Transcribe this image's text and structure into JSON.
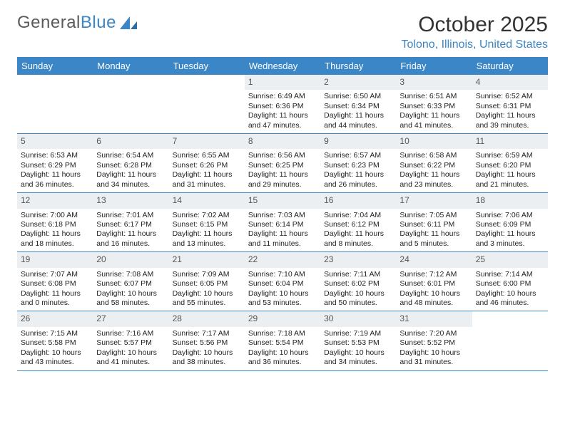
{
  "brand": {
    "part1": "General",
    "part2": "Blue"
  },
  "title": "October 2025",
  "location": "Tolono, Illinois, United States",
  "colors": {
    "accent": "#3b86c6",
    "daynum_bg": "#eceff1",
    "text": "#222222",
    "bg": "#ffffff"
  },
  "dow": [
    "Sunday",
    "Monday",
    "Tuesday",
    "Wednesday",
    "Thursday",
    "Friday",
    "Saturday"
  ],
  "layout": {
    "leading_blanks": 3,
    "days_in_month": 31
  },
  "days": [
    {
      "n": 1,
      "sunrise": "6:49 AM",
      "sunset": "6:36 PM",
      "dl_h": 11,
      "dl_m": 47
    },
    {
      "n": 2,
      "sunrise": "6:50 AM",
      "sunset": "6:34 PM",
      "dl_h": 11,
      "dl_m": 44
    },
    {
      "n": 3,
      "sunrise": "6:51 AM",
      "sunset": "6:33 PM",
      "dl_h": 11,
      "dl_m": 41
    },
    {
      "n": 4,
      "sunrise": "6:52 AM",
      "sunset": "6:31 PM",
      "dl_h": 11,
      "dl_m": 39
    },
    {
      "n": 5,
      "sunrise": "6:53 AM",
      "sunset": "6:29 PM",
      "dl_h": 11,
      "dl_m": 36
    },
    {
      "n": 6,
      "sunrise": "6:54 AM",
      "sunset": "6:28 PM",
      "dl_h": 11,
      "dl_m": 34
    },
    {
      "n": 7,
      "sunrise": "6:55 AM",
      "sunset": "6:26 PM",
      "dl_h": 11,
      "dl_m": 31
    },
    {
      "n": 8,
      "sunrise": "6:56 AM",
      "sunset": "6:25 PM",
      "dl_h": 11,
      "dl_m": 29
    },
    {
      "n": 9,
      "sunrise": "6:57 AM",
      "sunset": "6:23 PM",
      "dl_h": 11,
      "dl_m": 26
    },
    {
      "n": 10,
      "sunrise": "6:58 AM",
      "sunset": "6:22 PM",
      "dl_h": 11,
      "dl_m": 23
    },
    {
      "n": 11,
      "sunrise": "6:59 AM",
      "sunset": "6:20 PM",
      "dl_h": 11,
      "dl_m": 21
    },
    {
      "n": 12,
      "sunrise": "7:00 AM",
      "sunset": "6:18 PM",
      "dl_h": 11,
      "dl_m": 18
    },
    {
      "n": 13,
      "sunrise": "7:01 AM",
      "sunset": "6:17 PM",
      "dl_h": 11,
      "dl_m": 16
    },
    {
      "n": 14,
      "sunrise": "7:02 AM",
      "sunset": "6:15 PM",
      "dl_h": 11,
      "dl_m": 13
    },
    {
      "n": 15,
      "sunrise": "7:03 AM",
      "sunset": "6:14 PM",
      "dl_h": 11,
      "dl_m": 11
    },
    {
      "n": 16,
      "sunrise": "7:04 AM",
      "sunset": "6:12 PM",
      "dl_h": 11,
      "dl_m": 8
    },
    {
      "n": 17,
      "sunrise": "7:05 AM",
      "sunset": "6:11 PM",
      "dl_h": 11,
      "dl_m": 5
    },
    {
      "n": 18,
      "sunrise": "7:06 AM",
      "sunset": "6:09 PM",
      "dl_h": 11,
      "dl_m": 3
    },
    {
      "n": 19,
      "sunrise": "7:07 AM",
      "sunset": "6:08 PM",
      "dl_h": 11,
      "dl_m": 0
    },
    {
      "n": 20,
      "sunrise": "7:08 AM",
      "sunset": "6:07 PM",
      "dl_h": 10,
      "dl_m": 58
    },
    {
      "n": 21,
      "sunrise": "7:09 AM",
      "sunset": "6:05 PM",
      "dl_h": 10,
      "dl_m": 55
    },
    {
      "n": 22,
      "sunrise": "7:10 AM",
      "sunset": "6:04 PM",
      "dl_h": 10,
      "dl_m": 53
    },
    {
      "n": 23,
      "sunrise": "7:11 AM",
      "sunset": "6:02 PM",
      "dl_h": 10,
      "dl_m": 50
    },
    {
      "n": 24,
      "sunrise": "7:12 AM",
      "sunset": "6:01 PM",
      "dl_h": 10,
      "dl_m": 48
    },
    {
      "n": 25,
      "sunrise": "7:14 AM",
      "sunset": "6:00 PM",
      "dl_h": 10,
      "dl_m": 46
    },
    {
      "n": 26,
      "sunrise": "7:15 AM",
      "sunset": "5:58 PM",
      "dl_h": 10,
      "dl_m": 43
    },
    {
      "n": 27,
      "sunrise": "7:16 AM",
      "sunset": "5:57 PM",
      "dl_h": 10,
      "dl_m": 41
    },
    {
      "n": 28,
      "sunrise": "7:17 AM",
      "sunset": "5:56 PM",
      "dl_h": 10,
      "dl_m": 38
    },
    {
      "n": 29,
      "sunrise": "7:18 AM",
      "sunset": "5:54 PM",
      "dl_h": 10,
      "dl_m": 36
    },
    {
      "n": 30,
      "sunrise": "7:19 AM",
      "sunset": "5:53 PM",
      "dl_h": 10,
      "dl_m": 34
    },
    {
      "n": 31,
      "sunrise": "7:20 AM",
      "sunset": "5:52 PM",
      "dl_h": 10,
      "dl_m": 31
    }
  ],
  "labels": {
    "sunrise": "Sunrise:",
    "sunset": "Sunset:",
    "daylight": "Daylight:",
    "hours": "hours",
    "and": "and",
    "minutes": "minutes."
  }
}
